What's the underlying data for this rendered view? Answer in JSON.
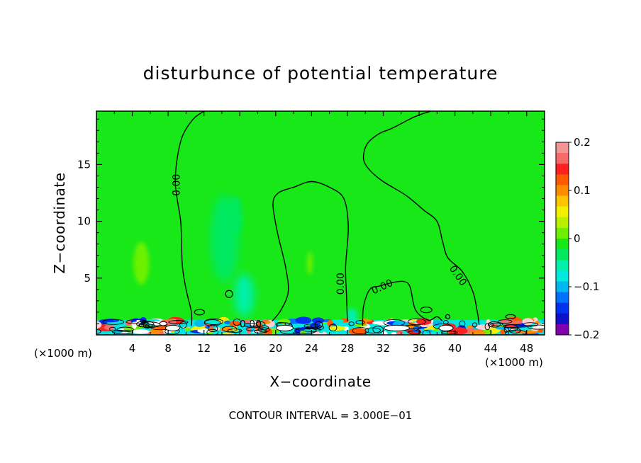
{
  "chart_data": {
    "type": "heatmap",
    "title": "disturbunce of potential temperature",
    "xlabel": "X−coordinate",
    "ylabel": "Z−coordinate",
    "x_unit_label": "(×1000 m)",
    "x_unit_label_right": "(×1000 m)",
    "xlim": [
      0,
      50
    ],
    "ylim": [
      0,
      19.7
    ],
    "x_ticks": [
      4,
      8,
      12,
      16,
      20,
      24,
      28,
      32,
      36,
      40,
      44,
      48
    ],
    "x_tick_labels": [
      "4",
      "8",
      "12",
      "16",
      "20",
      "24",
      "28",
      "32",
      "36",
      "40",
      "44",
      "48"
    ],
    "y_ticks": [
      5,
      10,
      15
    ],
    "y_tick_labels": [
      "5",
      "10",
      "15"
    ],
    "background_value": 0.0,
    "contour_label": "0.00",
    "contour_interval_text": "CONTOUR INTERVAL = 3.000E−01",
    "colorbar": {
      "range": [
        -0.2,
        0.2
      ],
      "tick_values": [
        0.2,
        0.1,
        0,
        -0.1,
        -0.2
      ],
      "tick_labels": [
        "0.2",
        "0.1",
        "0",
        "−0.1",
        "−0.2"
      ],
      "colors": [
        "#f49595",
        "#f76a6a",
        "#ff2020",
        "#ff5a00",
        "#ff8c00",
        "#ffc400",
        "#f0f000",
        "#b8f000",
        "#6cf000",
        "#18e818",
        "#00e860",
        "#00f0a8",
        "#00e8e0",
        "#00b8f0",
        "#0070ff",
        "#0030f0",
        "#1010c8",
        "#8000b0"
      ]
    },
    "contour_0_paths": [
      [
        [
          10.6,
          0.8
        ],
        [
          10.6,
          2.0
        ],
        [
          10.0,
          4.0
        ],
        [
          9.6,
          6.0
        ],
        [
          9.5,
          8.0
        ],
        [
          9.4,
          10.0
        ],
        [
          9.0,
          12.0
        ],
        [
          8.8,
          13.5
        ],
        [
          9.0,
          15.5
        ],
        [
          9.6,
          17.5
        ],
        [
          10.8,
          19.0
        ],
        [
          12.0,
          19.7
        ]
      ],
      [
        [
          19.6,
          1.2
        ],
        [
          20.6,
          2.2
        ],
        [
          21.4,
          3.8
        ],
        [
          21.1,
          6.0
        ],
        [
          20.2,
          9.0
        ],
        [
          19.7,
          11.5
        ],
        [
          20.3,
          12.5
        ],
        [
          22.0,
          13.0
        ],
        [
          24.0,
          13.5
        ],
        [
          26.0,
          13.0
        ],
        [
          27.6,
          12.0
        ],
        [
          28.1,
          9.5
        ],
        [
          27.8,
          6.0
        ],
        [
          27.9,
          3.5
        ],
        [
          28.0,
          1.2
        ]
      ],
      [
        [
          29.7,
          0.8
        ],
        [
          29.8,
          2.5
        ],
        [
          30.5,
          4.0
        ],
        [
          31.6,
          4.3
        ],
        [
          33.0,
          4.6
        ],
        [
          34.3,
          4.7
        ],
        [
          35.0,
          4.2
        ],
        [
          35.6,
          2.2
        ],
        [
          37.0,
          1.3
        ],
        [
          38.0,
          1.6
        ],
        [
          38.6,
          1.2
        ]
      ],
      [
        [
          42.7,
          0.9
        ],
        [
          42.5,
          2.0
        ],
        [
          42.0,
          3.8
        ],
        [
          40.8,
          5.6
        ],
        [
          39.2,
          6.8
        ],
        [
          38.6,
          8.3
        ],
        [
          38.0,
          10.0
        ],
        [
          36.5,
          11.0
        ],
        [
          34.5,
          12.3
        ],
        [
          32.0,
          13.5
        ],
        [
          30.5,
          14.5
        ],
        [
          29.8,
          15.5
        ],
        [
          30.2,
          16.8
        ],
        [
          31.5,
          17.7
        ],
        [
          33.0,
          18.2
        ],
        [
          35.5,
          19.2
        ],
        [
          37.3,
          19.7
        ]
      ]
    ]
  }
}
